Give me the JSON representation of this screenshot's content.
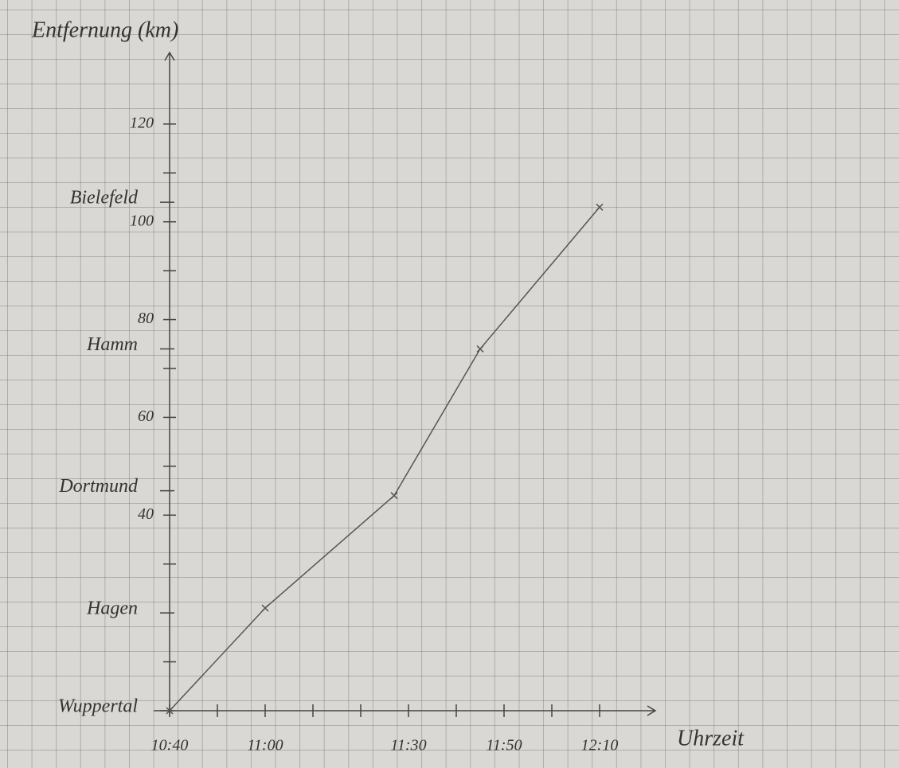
{
  "chart_data": {
    "type": "line",
    "y_label": "Entfernung (km)",
    "x_label": "Uhrzeit",
    "x": [
      "10:40",
      "11:00",
      "11:27",
      "11:45",
      "12:10"
    ],
    "values": [
      0,
      21,
      44,
      74,
      103
    ],
    "color": "#555555",
    "xlim": [
      "10:40",
      "12:20"
    ],
    "xticks": [
      "10:40",
      "11:00",
      "11:30",
      "11:50",
      "12:10"
    ],
    "minor_xticks": [
      "10:50",
      "11:10",
      "11:20",
      "11:40",
      "12:00"
    ],
    "ylim": [
      0,
      133
    ],
    "yticks": [
      40,
      60,
      80,
      100,
      120
    ],
    "minor_yticks": [
      10,
      30,
      50,
      70,
      90,
      110
    ],
    "station_ticks": [
      {
        "value": 0,
        "label": "Wuppertal"
      },
      {
        "value": 20,
        "label": "Hagen"
      },
      {
        "value": 45,
        "label": "Dortmund"
      },
      {
        "value": 74,
        "label": "Hamm"
      },
      {
        "value": 104,
        "label": "Bielefeld"
      }
    ],
    "grid": true
  }
}
